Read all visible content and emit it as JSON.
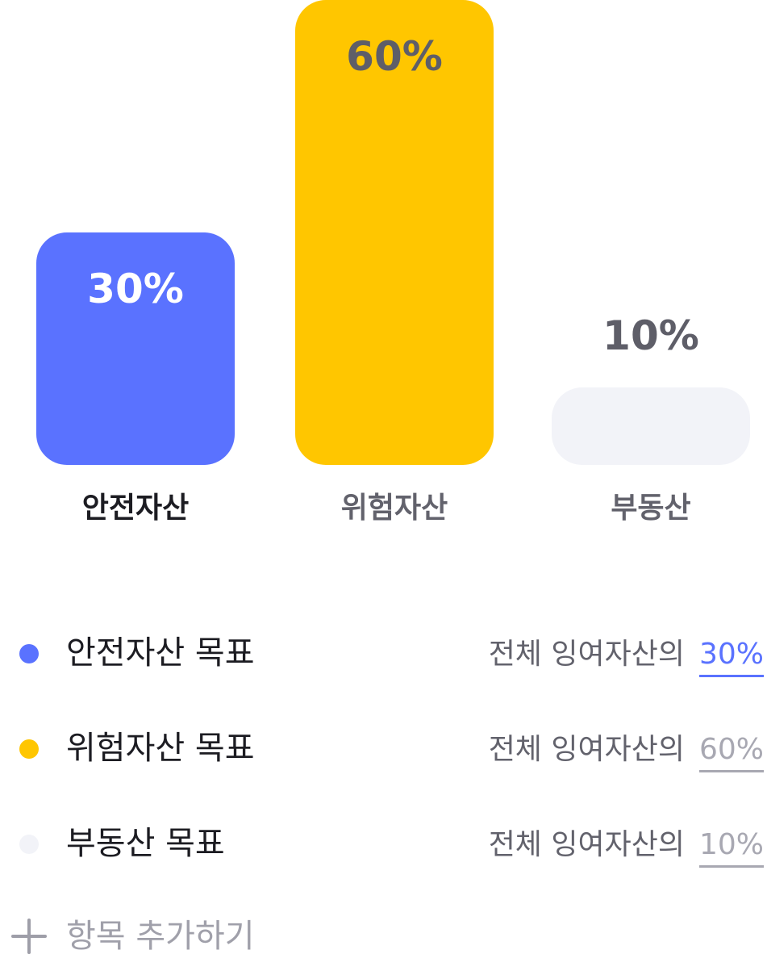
{
  "chart_data": {
    "type": "bar",
    "categories": [
      "안전자산",
      "위험자산",
      "부동산"
    ],
    "values": [
      30,
      60,
      10
    ],
    "value_labels": [
      "30%",
      "60%",
      "10%"
    ],
    "unit": "%",
    "ylim": [
      0,
      60
    ],
    "grid": false,
    "colors": {
      "안전자산": "#5a72ff",
      "위험자산": "#ffc600",
      "부동산": "#f2f3f8"
    },
    "value_label_colors": [
      "#ffffff",
      "#5e5e68",
      "#5e5e68"
    ],
    "category_label_colors": [
      "#1c1c22",
      "#62626c",
      "#62626c"
    ]
  },
  "goals": [
    {
      "name": "안전자산 목표",
      "prefix": "전체 잉여자산의",
      "value": "30%",
      "dot_color": "#5a72ff",
      "accent": true
    },
    {
      "name": "위험자산 목표",
      "prefix": "전체 잉여자산의",
      "value": "60%",
      "dot_color": "#ffc600",
      "accent": false
    },
    {
      "name": "부동산 목표",
      "prefix": "전체 잉여자산의",
      "value": "10%",
      "dot_color": "#f2f3f8",
      "accent": false
    }
  ],
  "add_item": {
    "label": "항목 추가하기",
    "icon": "plus-icon"
  }
}
